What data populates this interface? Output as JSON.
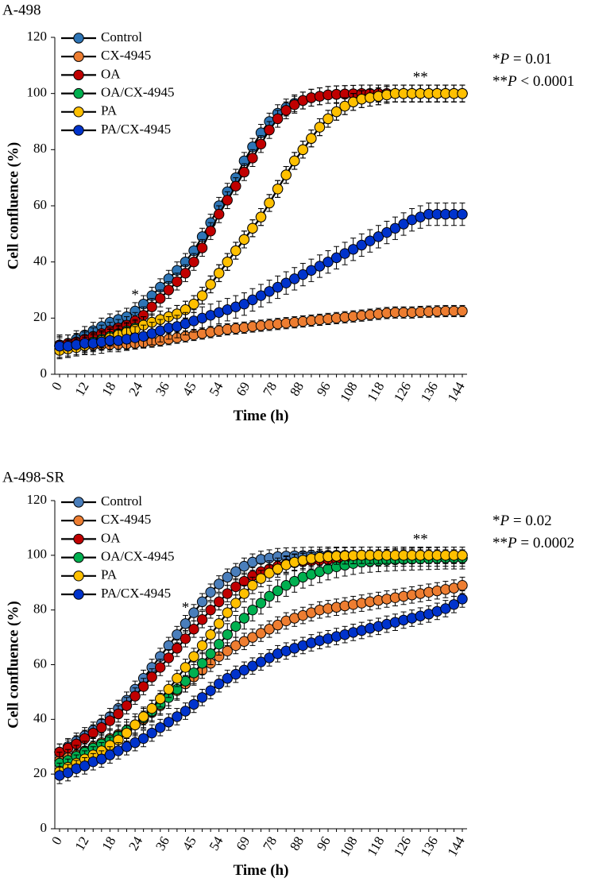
{
  "chart_data": [
    {
      "type": "line",
      "title": "A-498",
      "xlabel": "Time (h)",
      "ylabel": "Cell confluence (%)",
      "ylim": [
        0,
        120
      ],
      "yticks": [
        0,
        20,
        40,
        60,
        80,
        100,
        120
      ],
      "xticks": [
        "0",
        "12",
        "18",
        "24",
        "36",
        "45",
        "54",
        "69",
        "78",
        "88",
        "96",
        "108",
        "118",
        "126",
        "136",
        "144"
      ],
      "notes": [
        "*P = 0.01",
        "**P < 0.0001"
      ],
      "star_annotations": [
        {
          "text": "*",
          "index": 9
        },
        {
          "text": "**",
          "index": 43
        }
      ],
      "legend_position": "top-left",
      "x": [
        0,
        3,
        6,
        9,
        12,
        15,
        18,
        21,
        24,
        27,
        30,
        33,
        36,
        39,
        42,
        45,
        48,
        51,
        54,
        57,
        60,
        63,
        66,
        69,
        72,
        75,
        78,
        81,
        84,
        87,
        90,
        93,
        96,
        99,
        102,
        105,
        108,
        111,
        114,
        117,
        120,
        123,
        126,
        129,
        132,
        135,
        138,
        141,
        144
      ],
      "series": [
        {
          "name": "Control",
          "color": "#2e75b6",
          "error": 3,
          "values": [
            10,
            11,
            12.5,
            14,
            15.5,
            17,
            18.5,
            19.5,
            20.5,
            22.5,
            25,
            28,
            31,
            34,
            37,
            40,
            44,
            49,
            54,
            60,
            65,
            70,
            76,
            81,
            86,
            90,
            93,
            95,
            96.5,
            97.5,
            98.5,
            99,
            99.5,
            99.7,
            99.8,
            99.9,
            100,
            100,
            100,
            100,
            100,
            100,
            100,
            100,
            100,
            100,
            100,
            100,
            100
          ]
        },
        {
          "name": "CX-4945",
          "color": "#ed7d31",
          "error": 2,
          "values": [
            10,
            10,
            10,
            10.2,
            10.4,
            10.5,
            10.6,
            10.7,
            10.8,
            11,
            11.3,
            11.6,
            12,
            12.5,
            13,
            13.5,
            14,
            14.5,
            15,
            15.5,
            16,
            16.3,
            16.6,
            17,
            17.3,
            17.6,
            17.9,
            18.2,
            18.5,
            18.8,
            19.1,
            19.4,
            19.7,
            20,
            20.3,
            20.6,
            20.9,
            21.2,
            21.5,
            21.8,
            22,
            22,
            22,
            22.2,
            22.3,
            22.4,
            22.5,
            22.5,
            22.5
          ]
        },
        {
          "name": "OA",
          "color": "#c00000",
          "error": 3,
          "values": [
            10.5,
            11,
            11.5,
            12.5,
            13.5,
            14.5,
            15.5,
            16.5,
            17.5,
            19,
            21,
            24,
            27,
            30,
            33,
            36,
            40,
            45,
            51,
            57,
            62,
            67,
            72,
            77,
            82,
            87,
            91,
            94,
            96,
            97.5,
            98.5,
            99,
            99.5,
            99.7,
            99.8,
            99.9,
            100,
            100,
            100,
            100,
            100,
            100,
            100,
            100,
            100,
            100,
            100,
            100,
            100
          ]
        },
        {
          "name": "OA/CX-4945",
          "color": "#00b050",
          "error": 3,
          "values": [
            9,
            9.5,
            10,
            10.8,
            11.5,
            12.5,
            13.5,
            14.5,
            15.5,
            16.5,
            17.5,
            18.5,
            19.5,
            20.5,
            21.5,
            23,
            25,
            28,
            32,
            36,
            40,
            44,
            48,
            52,
            56,
            61,
            66,
            71,
            76,
            80,
            84,
            88,
            91,
            93.5,
            95.5,
            97,
            98,
            98.5,
            99,
            99.5,
            100,
            100,
            100,
            100,
            100,
            100,
            100,
            100,
            100
          ]
        },
        {
          "name": "PA",
          "color": "#ffc000",
          "error": 3,
          "values": [
            8.5,
            9,
            9.5,
            10.2,
            11,
            12,
            13,
            14,
            15,
            16,
            17.5,
            18.5,
            19.5,
            20.5,
            21.5,
            23,
            25,
            28,
            32,
            36,
            40,
            44,
            48,
            52,
            56,
            61,
            66,
            71,
            76,
            80,
            84,
            88,
            91,
            93.5,
            95.5,
            97,
            98,
            98.5,
            99,
            99.5,
            100,
            100,
            100,
            100,
            100,
            100,
            100,
            100,
            100
          ]
        },
        {
          "name": "PA/CX-4945",
          "color": "#0033cc",
          "error": 4,
          "values": [
            10,
            10,
            10.5,
            11,
            11,
            11.5,
            12,
            12,
            12.5,
            13,
            13.5,
            14.5,
            15.5,
            16.5,
            17,
            18,
            19,
            20,
            21,
            22,
            23,
            24,
            25,
            26.5,
            28,
            29.5,
            31,
            32.5,
            34,
            35.5,
            37,
            38.5,
            40,
            41.5,
            43,
            44.5,
            46,
            47.5,
            49,
            50.5,
            52,
            53.5,
            55,
            56,
            57,
            57,
            57,
            57,
            57
          ]
        }
      ]
    },
    {
      "type": "line",
      "title": "A-498-SR",
      "xlabel": "Time (h)",
      "ylabel": "Cell confluence (%)",
      "ylim": [
        0,
        120
      ],
      "yticks": [
        0,
        20,
        40,
        60,
        80,
        100,
        120
      ],
      "xticks": [
        "0",
        "12",
        "18",
        "24",
        "36",
        "45",
        "54",
        "69",
        "78",
        "88",
        "96",
        "108",
        "118",
        "126",
        "136",
        "144"
      ],
      "notes": [
        "*P = 0.02",
        "**P = 0.0002"
      ],
      "star_annotations": [
        {
          "text": "*",
          "index": 15
        },
        {
          "text": "**",
          "index": 43
        }
      ],
      "legend_position": "top-left",
      "x": [
        0,
        3,
        6,
        9,
        12,
        15,
        18,
        21,
        24,
        27,
        30,
        33,
        36,
        39,
        42,
        45,
        48,
        51,
        54,
        57,
        60,
        63,
        66,
        69,
        72,
        75,
        78,
        81,
        84,
        87,
        90,
        93,
        96,
        99,
        102,
        105,
        108,
        111,
        114,
        117,
        120,
        123,
        126,
        129,
        132,
        135,
        138,
        141,
        144
      ],
      "series": [
        {
          "name": "Control",
          "color": "#4a7ebb",
          "error": 3,
          "values": [
            28,
            30,
            32,
            34,
            36,
            38.5,
            41,
            44,
            47,
            51,
            55,
            59,
            63,
            67,
            71,
            75,
            79,
            83,
            86.5,
            89.5,
            92,
            94,
            96,
            97.5,
            98.5,
            99,
            99.5,
            99.7,
            99.8,
            99.9,
            100,
            100,
            100,
            100,
            100,
            100,
            100,
            100,
            100,
            100,
            100,
            100,
            100,
            100,
            100,
            100,
            100,
            100,
            100
          ]
        },
        {
          "name": "CX-4945",
          "color": "#ed7d31",
          "error": 3,
          "values": [
            25,
            26,
            27,
            28.5,
            30,
            31.5,
            33,
            34.5,
            36,
            38,
            40,
            42.5,
            45,
            48,
            50.5,
            53,
            55.5,
            58,
            60.5,
            63,
            65,
            67,
            68.5,
            70,
            71.5,
            73,
            74.5,
            76,
            77,
            78,
            79,
            80,
            80.5,
            81,
            81.5,
            82,
            82.5,
            83,
            83.5,
            84,
            84.5,
            85,
            85.5,
            86,
            86.5,
            87,
            87.5,
            88,
            89
          ]
        },
        {
          "name": "OA",
          "color": "#c00000",
          "error": 3,
          "values": [
            28,
            29.5,
            31,
            33,
            35,
            37,
            39.5,
            42,
            45,
            48.5,
            52,
            55.5,
            59,
            62.5,
            66,
            69.5,
            73,
            76.5,
            80,
            83,
            86,
            88.5,
            90.5,
            92.5,
            94,
            95,
            96,
            96.8,
            97.3,
            97.7,
            98,
            98.2,
            98.4,
            98.5,
            98.6,
            98.7,
            98.8,
            98.9,
            99,
            99,
            99,
            99,
            99,
            99,
            99,
            99,
            99,
            99,
            99
          ]
        },
        {
          "name": "OA/CX-4945",
          "color": "#00b050",
          "error": 4,
          "values": [
            24,
            25,
            26.5,
            28,
            29.5,
            31,
            32.5,
            34,
            36,
            38,
            40.5,
            43,
            45.5,
            48,
            51,
            54,
            57,
            60.5,
            64,
            67.5,
            71,
            74,
            77,
            80,
            82.5,
            85,
            87,
            89,
            90.5,
            92,
            93,
            94,
            95,
            95.8,
            96.4,
            97,
            97.5,
            97.8,
            98,
            98.2,
            98.4,
            98.5,
            98.6,
            98.7,
            98.8,
            98.9,
            99,
            99,
            99
          ]
        },
        {
          "name": "PA",
          "color": "#ffc000",
          "error": 3,
          "values": [
            21,
            22.5,
            24,
            25.5,
            27,
            28.5,
            30.5,
            32.5,
            35,
            38,
            41,
            44,
            47.5,
            51,
            55,
            59,
            63,
            67,
            71,
            75,
            79,
            82.5,
            86,
            89,
            91.5,
            93.5,
            95,
            96.5,
            97.5,
            98.2,
            98.8,
            99.2,
            99.5,
            99.7,
            99.8,
            99.9,
            100,
            100,
            100,
            100,
            100,
            100,
            100,
            100,
            100,
            100,
            100,
            100,
            100
          ]
        },
        {
          "name": "PA/CX-4945",
          "color": "#0033cc",
          "error": 3,
          "values": [
            19.5,
            20.5,
            22,
            23,
            24.5,
            25.5,
            27,
            28.5,
            30,
            31.5,
            33,
            35,
            37,
            39,
            41,
            43,
            45.5,
            48,
            50.5,
            53,
            55,
            56.5,
            58,
            59.5,
            61,
            62.5,
            64,
            65,
            66,
            67,
            68,
            68.8,
            69.5,
            70.3,
            71,
            71.8,
            72.5,
            73.3,
            74,
            74.8,
            75.5,
            76.3,
            77,
            77.8,
            78.5,
            79.5,
            80.5,
            82,
            84
          ]
        }
      ]
    }
  ]
}
